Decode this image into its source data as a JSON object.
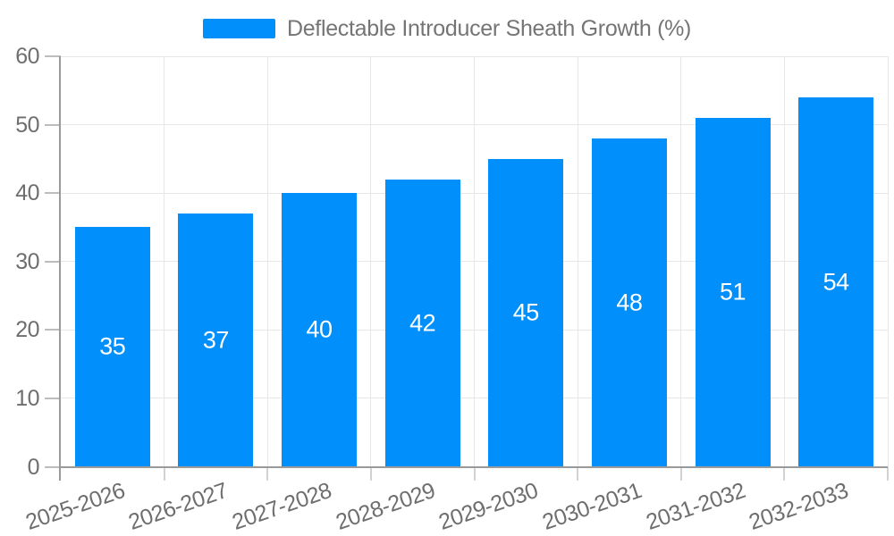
{
  "chart_data": {
    "type": "bar",
    "title": "Deflectable Introducer Sheath Growth (%)",
    "legend": {
      "position": "top",
      "entries": [
        "Deflectable Introducer Sheath Growth (%)"
      ]
    },
    "categories": [
      "2025-2026",
      "2026-2027",
      "2027-2028",
      "2028-2029",
      "2029-2030",
      "2030-2031",
      "2031-2032",
      "2032-2033"
    ],
    "values": [
      35,
      37,
      40,
      42,
      45,
      48,
      51,
      54
    ],
    "xlabel": "",
    "ylabel": "",
    "ylim": [
      0,
      60
    ],
    "yticks": [
      0,
      10,
      20,
      30,
      40,
      50,
      60
    ],
    "grid": true,
    "x_label_rotation_deg": -19,
    "bar_value_labels_inside": true,
    "colors": {
      "bar": "#008FFB",
      "grid": "#e7e7e7",
      "axis_line": "#9a9a9a",
      "tick_mark": "#bdbdbd",
      "tick_text": "#6e6e6e",
      "legend_text": "#757575",
      "bar_value_label": "#ffffff",
      "background": "#ffffff"
    }
  }
}
